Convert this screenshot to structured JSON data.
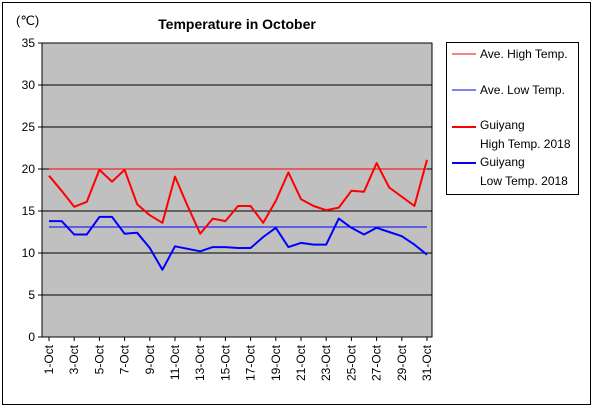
{
  "chart_data": {
    "type": "line",
    "title": "Temperature in October",
    "unit_label": "(℃)",
    "xlabel": "",
    "ylabel": "",
    "ylim": [
      0,
      35
    ],
    "y_ticks": [
      0,
      5,
      10,
      15,
      20,
      25,
      30,
      35
    ],
    "grid": true,
    "legend_position": "right",
    "x_tick_labels": [
      "1-Oct",
      "3-Oct",
      "5-Oct",
      "7-Oct",
      "9-Oct",
      "11-Oct",
      "13-Oct",
      "15-Oct",
      "17-Oct",
      "19-Oct",
      "21-Oct",
      "23-Oct",
      "25-Oct",
      "27-Oct",
      "29-Oct",
      "31-Oct"
    ],
    "x": [
      1,
      2,
      3,
      4,
      5,
      6,
      7,
      8,
      9,
      10,
      11,
      12,
      13,
      14,
      15,
      16,
      17,
      18,
      19,
      20,
      21,
      22,
      23,
      24,
      25,
      26,
      27,
      28,
      29,
      30,
      31
    ],
    "series": [
      {
        "name": "Ave. High Temp.",
        "color": "#ff0000",
        "stroke": "thin",
        "values": [
          20,
          20,
          20,
          20,
          20,
          20,
          20,
          20,
          20,
          20,
          20,
          20,
          20,
          20,
          20,
          20,
          20,
          20,
          20,
          20,
          20,
          20,
          20,
          20,
          20,
          20,
          20,
          20,
          20,
          20,
          20
        ]
      },
      {
        "name": "Ave. Low Temp.",
        "color": "#0000ff",
        "stroke": "thin",
        "values": [
          13.1,
          13.1,
          13.1,
          13.1,
          13.1,
          13.1,
          13.1,
          13.1,
          13.1,
          13.1,
          13.1,
          13.1,
          13.1,
          13.1,
          13.1,
          13.1,
          13.1,
          13.1,
          13.1,
          13.1,
          13.1,
          13.1,
          13.1,
          13.1,
          13.1,
          13.1,
          13.1,
          13.1,
          13.1,
          13.1,
          13.1
        ]
      },
      {
        "name": "Guiyang\nHigh Temp. 2018",
        "color": "#ff0000",
        "stroke": "thick",
        "values": [
          19.2,
          17.4,
          15.5,
          16.1,
          19.9,
          18.5,
          19.9,
          15.8,
          14.5,
          13.6,
          19.1,
          15.6,
          12.3,
          14.1,
          13.8,
          15.6,
          15.6,
          13.6,
          16.2,
          19.6,
          16.4,
          15.6,
          15.1,
          15.4,
          17.4,
          17.3,
          20.7,
          17.8,
          16.7,
          15.6,
          21.1
        ]
      },
      {
        "name": "Guiyang\nLow Temp. 2018",
        "color": "#0000ff",
        "stroke": "thick",
        "values": [
          13.8,
          13.8,
          12.2,
          12.2,
          14.3,
          14.3,
          12.3,
          12.4,
          10.6,
          8.0,
          10.8,
          10.5,
          10.2,
          10.7,
          10.7,
          10.6,
          10.6,
          11.9,
          13.0,
          10.7,
          11.2,
          11.0,
          11.0,
          14.1,
          13.0,
          12.2,
          13.0,
          12.5,
          12.0,
          11.0,
          9.8
        ]
      }
    ]
  }
}
